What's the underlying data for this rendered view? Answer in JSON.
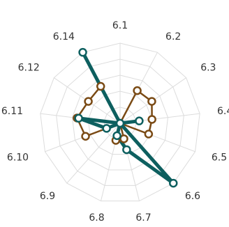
{
  "chart_data": {
    "type": "radar",
    "title": "",
    "categories": [
      "6.1",
      "6.2",
      "6.3",
      "6.4",
      "6.5",
      "6.6",
      "6.7",
      "6.8",
      "6.9",
      "6.10",
      "6.11",
      "6.12",
      "6.14"
    ],
    "rlim": [
      0,
      5
    ],
    "grid": true,
    "legend": "none",
    "series": [
      {
        "color": "#7a4a14",
        "values": [
          0,
          2.3,
          2.4,
          2.0,
          1.9,
          0,
          1.0,
          1.1,
          0,
          2.3,
          2.7,
          2.4,
          2.6
        ]
      },
      {
        "color": "#0d5f5f",
        "values": [
          0,
          0,
          0,
          1.2,
          0,
          5.0,
          1.7,
          0.8,
          0,
          0.9,
          2.6,
          0,
          5.0
        ]
      }
    ]
  }
}
